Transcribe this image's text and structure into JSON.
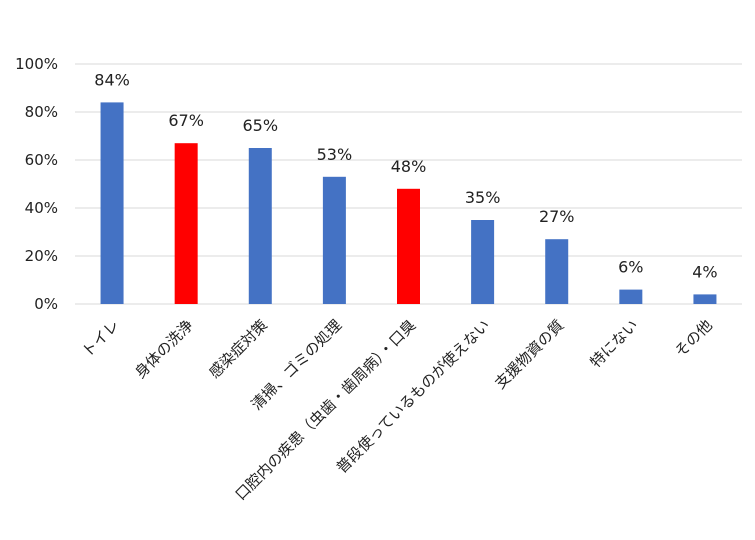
{
  "chart_data": {
    "type": "bar",
    "title": "",
    "xlabel": "",
    "ylabel": "",
    "ylim": [
      0,
      100
    ],
    "y_ticks": [
      "0%",
      "20%",
      "40%",
      "60%",
      "80%",
      "100%"
    ],
    "grid": true,
    "legend": "none",
    "categories": [
      "トイレ",
      "身体の洗浄",
      "感染症対策",
      "清掃、ゴミの処理",
      "口腔内の疾患（虫歯・歯周病）・口臭",
      "普段使っているものが使えない",
      "支援物資の質",
      "特にない",
      "その他"
    ],
    "values": [
      84,
      67,
      65,
      53,
      48,
      35,
      27,
      6,
      4
    ],
    "data_labels": [
      "84%",
      "67%",
      "65%",
      "53%",
      "48%",
      "35%",
      "27%",
      "6%",
      "4%"
    ],
    "bar_colors": [
      "#4472c4",
      "#ff0000",
      "#4472c4",
      "#4472c4",
      "#ff0000",
      "#4472c4",
      "#4472c4",
      "#4472c4",
      "#4472c4"
    ],
    "gridline_color": "#d9d9d9"
  }
}
